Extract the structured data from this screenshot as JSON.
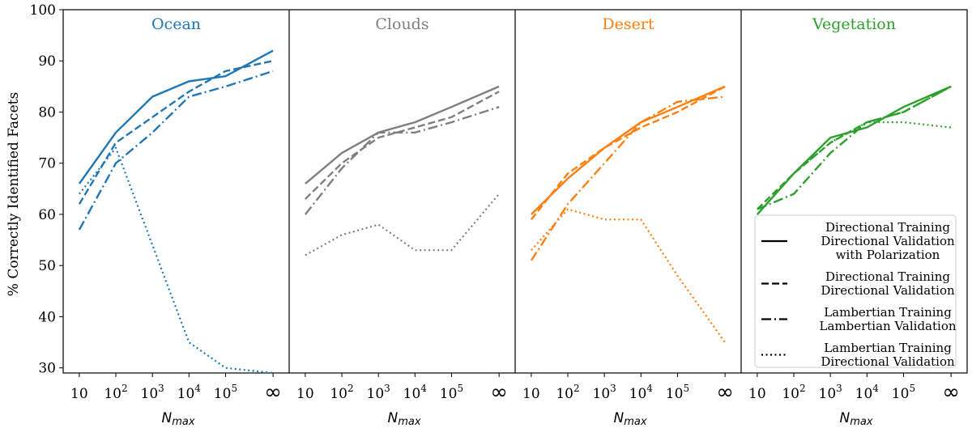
{
  "chart_data": {
    "type": "line",
    "ylabel": "% Correctly Identified Facets",
    "xlabel": "N_max",
    "xlabel_parts": {
      "base": "N",
      "sub": "max"
    },
    "ylim": [
      29,
      100
    ],
    "yticks": [
      30,
      40,
      50,
      60,
      70,
      80,
      90,
      100
    ],
    "x_positions": [
      1,
      2,
      3,
      4,
      5,
      6.3
    ],
    "xtick_labels": [
      {
        "base": "10",
        "exp": ""
      },
      {
        "base": "10",
        "exp": "2"
      },
      {
        "base": "10",
        "exp": "3"
      },
      {
        "base": "10",
        "exp": "4"
      },
      {
        "base": "10",
        "exp": "5"
      },
      {
        "base": "∞",
        "exp": ""
      }
    ],
    "legend": {
      "placement": "lower-right of last panel",
      "entries": [
        {
          "style": "solid",
          "lines": [
            "Directional Training",
            "Directional Validation",
            "with Polarization"
          ]
        },
        {
          "style": "dashed",
          "lines": [
            "Directional Training",
            "Directional Validation"
          ]
        },
        {
          "style": "dashdot",
          "lines": [
            "Lambertian Training",
            "Lambertian Validation"
          ]
        },
        {
          "style": "dotted",
          "lines": [
            "Lambertian Training",
            "Directional Validation"
          ]
        }
      ]
    },
    "panels": [
      {
        "title": "Ocean",
        "color": "#1f77b4",
        "x": [
          1,
          2,
          3,
          4,
          5,
          6.3
        ],
        "series": [
          {
            "style": "solid",
            "points": [
              [
                1,
                66
              ],
              [
                2,
                76
              ],
              [
                3,
                83
              ],
              [
                4,
                86
              ],
              [
                5,
                87
              ],
              [
                6.3,
                92
              ]
            ]
          },
          {
            "style": "dashed",
            "points": [
              [
                1,
                62
              ],
              [
                2,
                74
              ],
              [
                3,
                79
              ],
              [
                4,
                84
              ],
              [
                5,
                88
              ],
              [
                6.3,
                90
              ]
            ]
          },
          {
            "style": "dashdot",
            "points": [
              [
                1,
                57
              ],
              [
                2,
                70
              ],
              [
                3,
                76
              ],
              [
                4,
                83
              ],
              [
                5,
                85
              ],
              [
                6.3,
                88
              ]
            ]
          },
          {
            "style": "dotted",
            "points": [
              [
                1,
                64
              ],
              [
                2,
                73
              ],
              [
                3,
                54
              ],
              [
                4,
                35
              ],
              [
                5,
                30
              ],
              [
                6.3,
                29
              ]
            ]
          }
        ]
      },
      {
        "title": "Clouds",
        "color": "#7f7f7f",
        "series": [
          {
            "style": "solid",
            "points": [
              [
                1,
                66
              ],
              [
                2,
                72
              ],
              [
                3,
                76
              ],
              [
                4,
                78
              ],
              [
                5,
                81
              ],
              [
                6.3,
                85
              ]
            ]
          },
          {
            "style": "dashed",
            "points": [
              [
                1,
                63
              ],
              [
                2,
                70
              ],
              [
                3,
                75
              ],
              [
                4,
                77
              ],
              [
                5,
                79
              ],
              [
                6.3,
                84
              ]
            ]
          },
          {
            "style": "dashdot",
            "points": [
              [
                1,
                60
              ],
              [
                2,
                69
              ],
              [
                3,
                76
              ],
              [
                4,
                76
              ],
              [
                5,
                78
              ],
              [
                6.3,
                81
              ]
            ]
          },
          {
            "style": "dotted",
            "points": [
              [
                1,
                52
              ],
              [
                2,
                56
              ],
              [
                3,
                58
              ],
              [
                4,
                53
              ],
              [
                5,
                53
              ],
              [
                6.3,
                64
              ]
            ]
          }
        ]
      },
      {
        "title": "Desert",
        "color": "#ff7f0e",
        "series": [
          {
            "style": "solid",
            "points": [
              [
                1,
                60
              ],
              [
                2,
                67
              ],
              [
                3,
                73
              ],
              [
                4,
                78
              ],
              [
                5,
                81
              ],
              [
                6.3,
                85
              ]
            ]
          },
          {
            "style": "dashed",
            "points": [
              [
                1,
                59
              ],
              [
                2,
                68
              ],
              [
                3,
                73
              ],
              [
                4,
                77
              ],
              [
                5,
                80
              ],
              [
                6.3,
                85
              ]
            ]
          },
          {
            "style": "dashdot",
            "points": [
              [
                1,
                51
              ],
              [
                2,
                62
              ],
              [
                3,
                70
              ],
              [
                4,
                78
              ],
              [
                5,
                82
              ],
              [
                6.3,
                83
              ]
            ]
          },
          {
            "style": "dotted",
            "points": [
              [
                1,
                53
              ],
              [
                2,
                61
              ],
              [
                3,
                59
              ],
              [
                4,
                59
              ],
              [
                5,
                48
              ],
              [
                6.3,
                35
              ]
            ]
          }
        ]
      },
      {
        "title": "Vegetation",
        "color": "#2ca02c",
        "series": [
          {
            "style": "solid",
            "points": [
              [
                1,
                60
              ],
              [
                2,
                68
              ],
              [
                3,
                75
              ],
              [
                4,
                77
              ],
              [
                5,
                81
              ],
              [
                6.3,
                85
              ]
            ]
          },
          {
            "style": "dashed",
            "points": [
              [
                1,
                61
              ],
              [
                2,
                68
              ],
              [
                3,
                74
              ],
              [
                4,
                78
              ],
              [
                5,
                80
              ],
              [
                6.3,
                85
              ]
            ]
          },
          {
            "style": "dashdot",
            "points": [
              [
                1,
                61
              ],
              [
                2,
                64
              ],
              [
                3,
                72
              ],
              [
                4,
                78
              ],
              [
                5,
                80
              ],
              [
                6.3,
                85
              ]
            ]
          },
          {
            "style": "dotted",
            "points": [
              [
                1,
                60
              ],
              [
                2,
                68
              ],
              [
                3,
                74
              ],
              [
                4,
                78
              ],
              [
                5,
                78
              ],
              [
                6.3,
                77
              ]
            ]
          }
        ]
      }
    ]
  }
}
